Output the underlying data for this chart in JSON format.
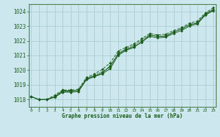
{
  "title": "Graphe pression niveau de la mer (hPa)",
  "xlabel_hours": [
    0,
    1,
    2,
    3,
    4,
    5,
    6,
    7,
    8,
    9,
    10,
    11,
    12,
    13,
    14,
    15,
    16,
    17,
    18,
    19,
    20,
    21,
    22,
    23
  ],
  "ylim": [
    1017.5,
    1024.5
  ],
  "yticks": [
    1018,
    1019,
    1020,
    1021,
    1022,
    1023,
    1024
  ],
  "bg_color": "#cce8ee",
  "grid_color": "#aacccc",
  "line_color": "#1a5c1a",
  "line1": [
    1018.2,
    1018.0,
    1018.0,
    1018.2,
    1018.6,
    1018.6,
    1018.6,
    1019.4,
    1019.6,
    1019.8,
    1020.3,
    1021.1,
    1021.4,
    1021.6,
    1021.9,
    1022.4,
    1022.3,
    1022.3,
    1022.6,
    1022.8,
    1023.1,
    1023.2,
    1023.8,
    1024.1
  ],
  "line2": [
    1018.2,
    1018.0,
    1018.0,
    1018.3,
    1018.65,
    1018.65,
    1018.7,
    1019.5,
    1019.75,
    1020.05,
    1020.5,
    1021.3,
    1021.55,
    1021.8,
    1022.15,
    1022.5,
    1022.4,
    1022.45,
    1022.7,
    1022.9,
    1023.2,
    1023.35,
    1023.9,
    1024.25
  ],
  "line3": [
    1018.2,
    1018.0,
    1018.0,
    1018.2,
    1018.55,
    1018.55,
    1018.6,
    1019.45,
    1019.65,
    1019.9,
    1020.2,
    1021.15,
    1021.45,
    1021.7,
    1022.05,
    1022.4,
    1022.3,
    1022.35,
    1022.6,
    1022.8,
    1023.1,
    1023.25,
    1023.85,
    1024.15
  ],
  "line4": [
    1018.2,
    1018.0,
    1018.0,
    1018.15,
    1018.5,
    1018.5,
    1018.55,
    1019.35,
    1019.55,
    1019.75,
    1020.1,
    1021.0,
    1021.35,
    1021.55,
    1021.95,
    1022.3,
    1022.2,
    1022.25,
    1022.5,
    1022.7,
    1023.0,
    1023.15,
    1023.75,
    1024.05
  ],
  "marker": "D",
  "marker_size": 1.8,
  "line_width": 0.7
}
